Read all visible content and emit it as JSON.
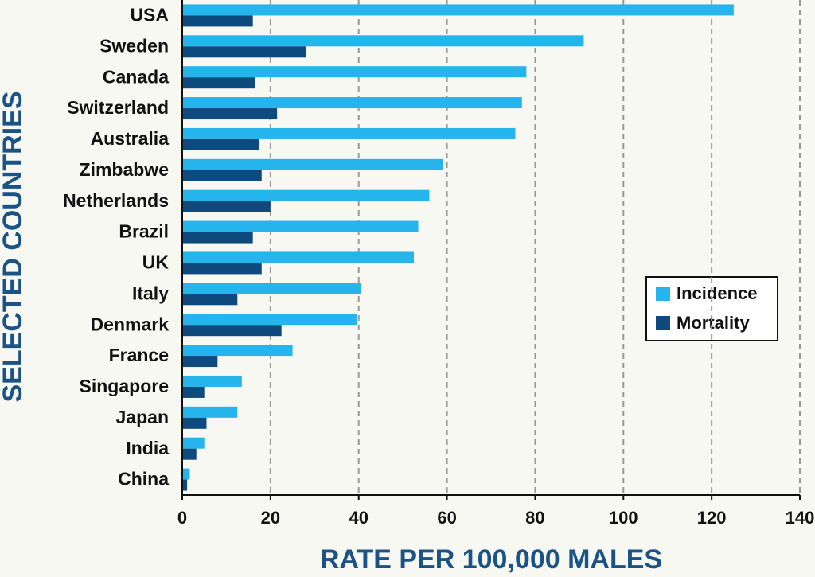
{
  "chart_data": {
    "type": "hbar_grouped",
    "x_label": "RATE PER 100,000 MALES",
    "y_label": "SELECTED COUNTRIES",
    "categories": [
      "USA",
      "Sweden",
      "Canada",
      "Switzerland",
      "Australia",
      "Zimbabwe",
      "Netherlands",
      "Brazil",
      "UK",
      "Italy",
      "Denmark",
      "France",
      "Singapore",
      "Japan",
      "India",
      "China"
    ],
    "series": [
      {
        "name": "Incidence",
        "color": "#25b4ec",
        "values": [
          125,
          91,
          78,
          77,
          75.5,
          59,
          56,
          53.5,
          52.5,
          40.5,
          39.5,
          25,
          13.5,
          12.5,
          5,
          1.7
        ]
      },
      {
        "name": "Mortality",
        "color": "#0f4a7e",
        "values": [
          16,
          28,
          16.5,
          21.5,
          17.5,
          18,
          20,
          16,
          18,
          12.5,
          22.5,
          8,
          5,
          5.5,
          3.2,
          1.1
        ]
      }
    ],
    "xlim": [
      0,
      140
    ],
    "xticks": [
      0,
      20,
      40,
      60,
      80,
      100,
      120,
      140
    ],
    "grid": true,
    "legend_position": "right"
  }
}
